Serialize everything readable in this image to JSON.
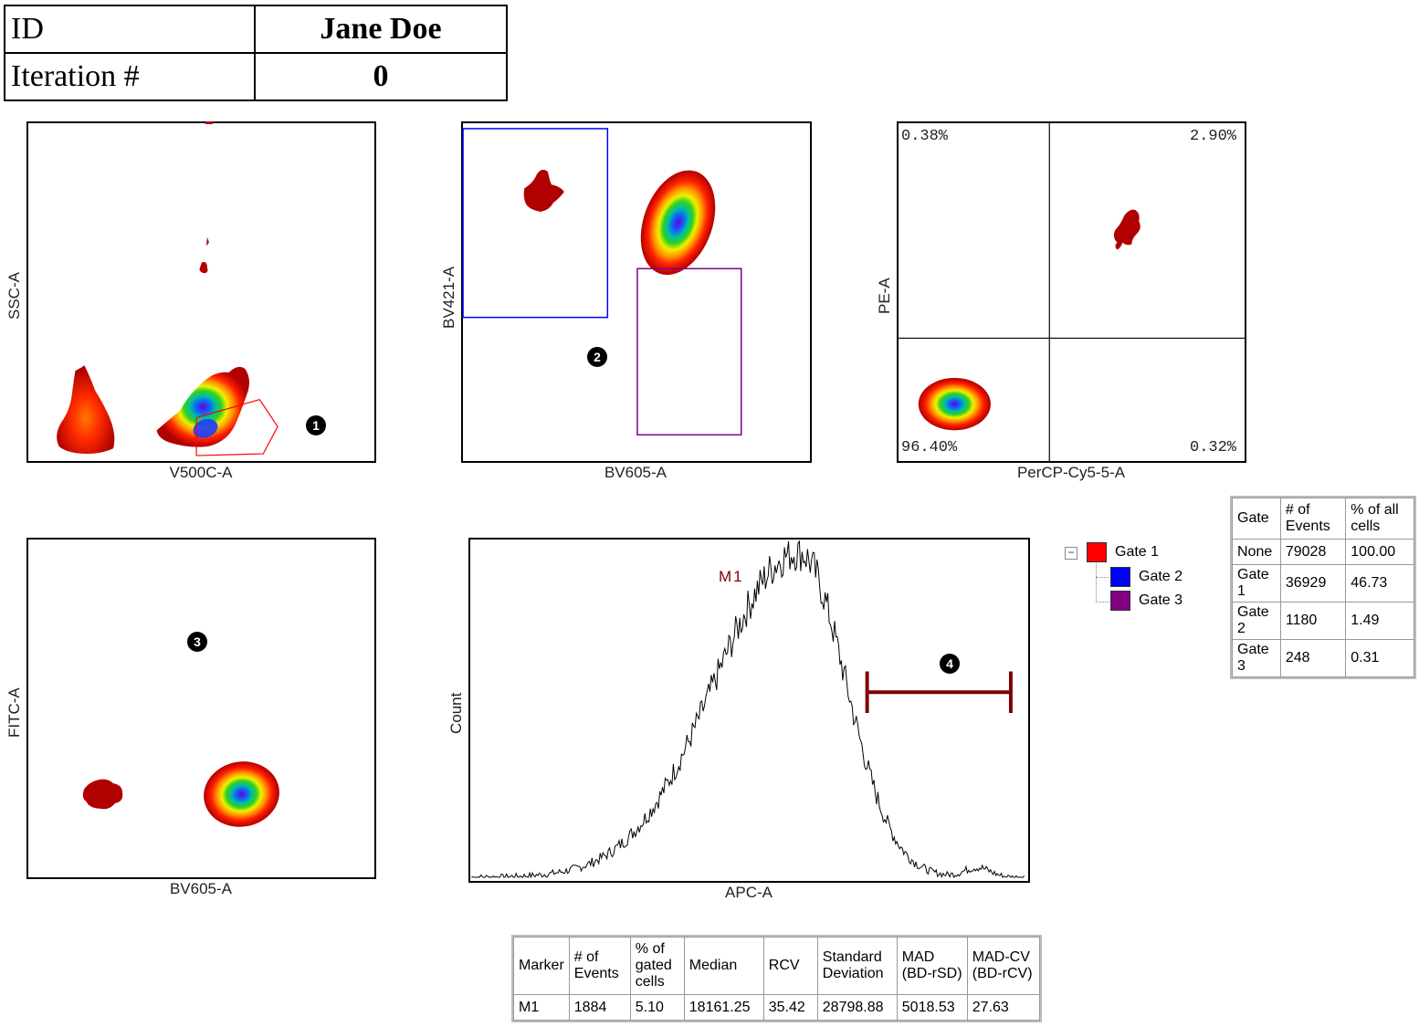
{
  "header": {
    "id_label": "ID",
    "id_value": "Jane Doe",
    "iter_label": "Iteration #",
    "iter_value": "0"
  },
  "plots": {
    "p1": {
      "xlabel": "V500C-A",
      "ylabel": "SSC-A",
      "badge": "1"
    },
    "p2": {
      "xlabel": "BV605-A",
      "ylabel": "BV421-A",
      "badge": "2"
    },
    "p3": {
      "xlabel": "PerCP-Cy5-5-A",
      "ylabel": "PE-A",
      "q_ul": "0.38%",
      "q_ur": "2.90%",
      "q_ll": "96.40%",
      "q_lr": "0.32%"
    },
    "p4": {
      "xlabel": "BV605-A",
      "ylabel": "FITC-A",
      "badge": "3"
    },
    "p5": {
      "xlabel": "APC-A",
      "ylabel": "Count",
      "marker": "M1",
      "badge": "4"
    }
  },
  "colors": {
    "gate1": "#ff0000",
    "gate2": "#0000ff",
    "gate3": "#800080",
    "marker": "#800000"
  },
  "gate_legend": [
    {
      "label": "Gate 1",
      "color": "#ff0000"
    },
    {
      "label": "Gate 2",
      "color": "#0000ff"
    },
    {
      "label": "Gate 3",
      "color": "#800080"
    }
  ],
  "gate_table": {
    "headers": [
      "Gate",
      "# of Events",
      "% of all cells"
    ],
    "rows": [
      [
        "None",
        "79028",
        "100.00"
      ],
      [
        "Gate 1",
        "36929",
        "46.73"
      ],
      [
        "Gate 2",
        "1180",
        "1.49"
      ],
      [
        "Gate 3",
        "248",
        "0.31"
      ]
    ]
  },
  "marker_table": {
    "headers": [
      "Marker",
      "# of Events",
      "% of gated cells",
      "Median",
      "RCV",
      "Standard Deviation",
      "MAD (BD-rSD)",
      "MAD-CV (BD-rCV)"
    ],
    "rows": [
      [
        "M1",
        "1884",
        "5.10",
        "18161.25",
        "35.42",
        "28798.88",
        "5018.53",
        "27.63"
      ]
    ]
  },
  "chart_data": [
    {
      "type": "scatter",
      "xlabel": "V500C-A",
      "ylabel": "SSC-A"
    },
    {
      "type": "scatter",
      "xlabel": "BV605-A",
      "ylabel": "BV421-A"
    },
    {
      "type": "scatter",
      "xlabel": "PerCP-Cy5-5-A",
      "ylabel": "PE-A",
      "quadrants": {
        "upper_left": 0.38,
        "upper_right": 2.9,
        "lower_left": 96.4,
        "lower_right": 0.32
      }
    },
    {
      "type": "scatter",
      "xlabel": "BV605-A",
      "ylabel": "FITC-A"
    },
    {
      "type": "area",
      "xlabel": "APC-A",
      "ylabel": "Count",
      "marker": "M1"
    }
  ]
}
